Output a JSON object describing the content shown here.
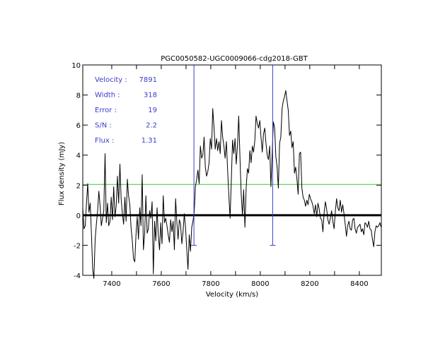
{
  "chart_data": {
    "type": "line",
    "title": "PGC0050582-UGC0009066-cdg2018-GBT",
    "xlabel": "Velocity (km/s)",
    "ylabel": "Flux density (mJy)",
    "xlim": [
      7283,
      8489
    ],
    "ylim": [
      -4,
      10
    ],
    "xticks": [
      7400,
      7500,
      7600,
      7700,
      7800,
      7900,
      8000,
      8100,
      8200,
      8300,
      8400
    ],
    "xtick_labels": [
      "7400",
      "7600",
      "7800",
      "8000",
      "8200",
      "8400"
    ],
    "yticks": [
      -4,
      -2,
      0,
      2,
      4,
      6,
      8,
      10
    ],
    "annotations": [
      {
        "label": "Velocity :",
        "value": "7891"
      },
      {
        "label": "Width :",
        "value": "318"
      },
      {
        "label": "Error :",
        "value": "19"
      },
      {
        "label": "S/N :",
        "value": "2.2"
      },
      {
        "label": "Flux :",
        "value": "1.31"
      }
    ],
    "zero_line": 0,
    "threshold_line": {
      "y": 2.05,
      "color": "#3cc83c"
    },
    "markers": [
      {
        "x": 7732,
        "y_top": 10,
        "y_bottom": -2,
        "color": "#3c3cc8"
      },
      {
        "x": 8050,
        "y_top": 10,
        "y_bottom": -2,
        "color": "#3c3cc8"
      }
    ],
    "series": [
      {
        "name": "spectrum",
        "color": "#000000",
        "x": [
          7283,
          7288,
          7293,
          7298,
          7303,
          7308,
          7313,
          7318,
          7323,
          7328,
          7333,
          7338,
          7343,
          7348,
          7353,
          7358,
          7363,
          7368,
          7373,
          7378,
          7383,
          7388,
          7393,
          7398,
          7403,
          7408,
          7413,
          7418,
          7423,
          7428,
          7433,
          7438,
          7443,
          7448,
          7453,
          7458,
          7463,
          7468,
          7473,
          7478,
          7483,
          7488,
          7493,
          7498,
          7503,
          7508,
          7513,
          7518,
          7523,
          7528,
          7533,
          7538,
          7543,
          7548,
          7553,
          7558,
          7563,
          7568,
          7573,
          7578,
          7583,
          7588,
          7593,
          7598,
          7603,
          7608,
          7613,
          7618,
          7623,
          7628,
          7633,
          7638,
          7643,
          7648,
          7653,
          7658,
          7663,
          7668,
          7673,
          7678,
          7683,
          7688,
          7693,
          7698,
          7703,
          7708,
          7713,
          7718,
          7723,
          7728,
          7733,
          7738,
          7743,
          7748,
          7753,
          7758,
          7763,
          7768,
          7773,
          7778,
          7783,
          7788,
          7793,
          7798,
          7803,
          7808,
          7813,
          7818,
          7823,
          7828,
          7833,
          7838,
          7843,
          7848,
          7853,
          7858,
          7863,
          7868,
          7873,
          7878,
          7883,
          7888,
          7893,
          7898,
          7903,
          7908,
          7913,
          7918,
          7923,
          7928,
          7933,
          7938,
          7943,
          7948,
          7953,
          7958,
          7963,
          7968,
          7973,
          7978,
          7983,
          7988,
          7993,
          7998,
          8003,
          8008,
          8013,
          8018,
          8023,
          8028,
          8033,
          8038,
          8043,
          8048,
          8053,
          8058,
          8063,
          8068,
          8073,
          8078,
          8083,
          8088,
          8093,
          8098,
          8103,
          8108,
          8113,
          8118,
          8123,
          8128,
          8133,
          8138,
          8143,
          8148,
          8153,
          8158,
          8163,
          8168,
          8173,
          8178,
          8183,
          8188,
          8193,
          8198,
          8203,
          8208,
          8213,
          8218,
          8223,
          8228,
          8233,
          8238,
          8243,
          8248,
          8253,
          8258,
          8263,
          8268,
          8273,
          8278,
          8283,
          8288,
          8293,
          8298,
          8303,
          8308,
          8313,
          8318,
          8323,
          8328,
          8333,
          8338,
          8343,
          8348,
          8353,
          8358,
          8363,
          8368,
          8373,
          8378,
          8383,
          8388,
          8393,
          8398,
          8403,
          8408,
          8413,
          8418,
          8423,
          8428,
          8433,
          8438,
          8443,
          8448,
          8453,
          8458,
          8463,
          8468,
          8473,
          8478,
          8483,
          8488
        ],
        "y": [
          0.5,
          -0.9,
          -0.7,
          0.8,
          2.1,
          0.2,
          0.8,
          -1.2,
          -3.6,
          -4.2,
          -1.6,
          -0.6,
          0.3,
          1.6,
          0.6,
          -0.7,
          -0.2,
          0.3,
          4.1,
          -0.5,
          0.8,
          -0.7,
          -0.4,
          1.2,
          -0.3,
          1.9,
          -0.1,
          0.6,
          2.6,
          0.8,
          3.4,
          1.1,
          0.1,
          -0.6,
          1.2,
          -0.4,
          2.4,
          1.3,
          0.7,
          -0.8,
          -1.7,
          -2.9,
          -3.1,
          -1.3,
          -0.1,
          -1.6,
          0.5,
          -0.7,
          2.7,
          -2.3,
          -1.2,
          1.3,
          -1.2,
          -0.9,
          0.3,
          -0.2,
          0.9,
          -3.9,
          -0.4,
          -1.7,
          0.5,
          -1.3,
          -2.3,
          -0.5,
          -1.9,
          1.3,
          -0.5,
          -0.2,
          -0.7,
          -1.3,
          -1.8,
          -0.3,
          -1.1,
          -0.4,
          -2.3,
          1.1,
          -0.5,
          -1.6,
          -0.3,
          -0.6,
          -1.9,
          -1.1,
          0.1,
          -0.8,
          -2.3,
          -3.6,
          -1.3,
          -2.4,
          -0.8,
          -0.4,
          0.2,
          1.9,
          2.4,
          3.0,
          2.1,
          4.6,
          3.8,
          4.0,
          5.2,
          3.2,
          2.6,
          2.9,
          3.5,
          5.1,
          4.4,
          7.1,
          5.8,
          4.4,
          5.1,
          4.3,
          4.9,
          4.1,
          6.3,
          5.2,
          4.6,
          3.8,
          4.9,
          3.0,
          1.3,
          -0.2,
          2.4,
          5.0,
          4.1,
          5.1,
          3.4,
          4.7,
          6.6,
          3.8,
          1.4,
          0.0,
          1.7,
          -0.8,
          1.8,
          3.1,
          2.8,
          4.3,
          3.5,
          4.6,
          4.2,
          5.0,
          6.6,
          6.1,
          5.8,
          6.3,
          5.2,
          4.2,
          5.4,
          5.8,
          4.8,
          4.0,
          3.7,
          4.6,
          1.9,
          4.1,
          6.2,
          5.8,
          3.9,
          3.2,
          1.8,
          4.8,
          5.2,
          7.1,
          7.6,
          7.9,
          8.3,
          7.6,
          7.0,
          5.3,
          5.6,
          4.5,
          4.9,
          2.8,
          3.2,
          2.4,
          1.4,
          4.1,
          4.2,
          1.8,
          1.2,
          1.0,
          0.6,
          1.0,
          0.7,
          1.4,
          1.1,
          0.9,
          0.6,
          0.1,
          0.7,
          -0.1,
          0.8,
          0.4,
          -0.2,
          -0.3,
          -1.1,
          0.2,
          0.9,
          0.4,
          -0.3,
          -0.6,
          -0.2,
          0.3,
          -0.4,
          -0.9,
          0.2,
          1.1,
          0.5,
          0.3,
          1.0,
          0.2,
          0.7,
          0.1,
          -0.6,
          -1.4,
          -0.7,
          -0.4,
          -0.9,
          -1.0,
          -0.3,
          -0.2,
          -0.9,
          -1.2,
          -0.8,
          -0.7,
          -0.6,
          -1.1,
          -0.9,
          -1.3,
          -0.5,
          -0.6,
          -0.8,
          -0.4,
          -0.9,
          -1.0,
          -1.6,
          -2.1,
          -1.1,
          -0.7,
          -0.8,
          -0.7,
          -0.5,
          -0.8
        ]
      }
    ]
  }
}
